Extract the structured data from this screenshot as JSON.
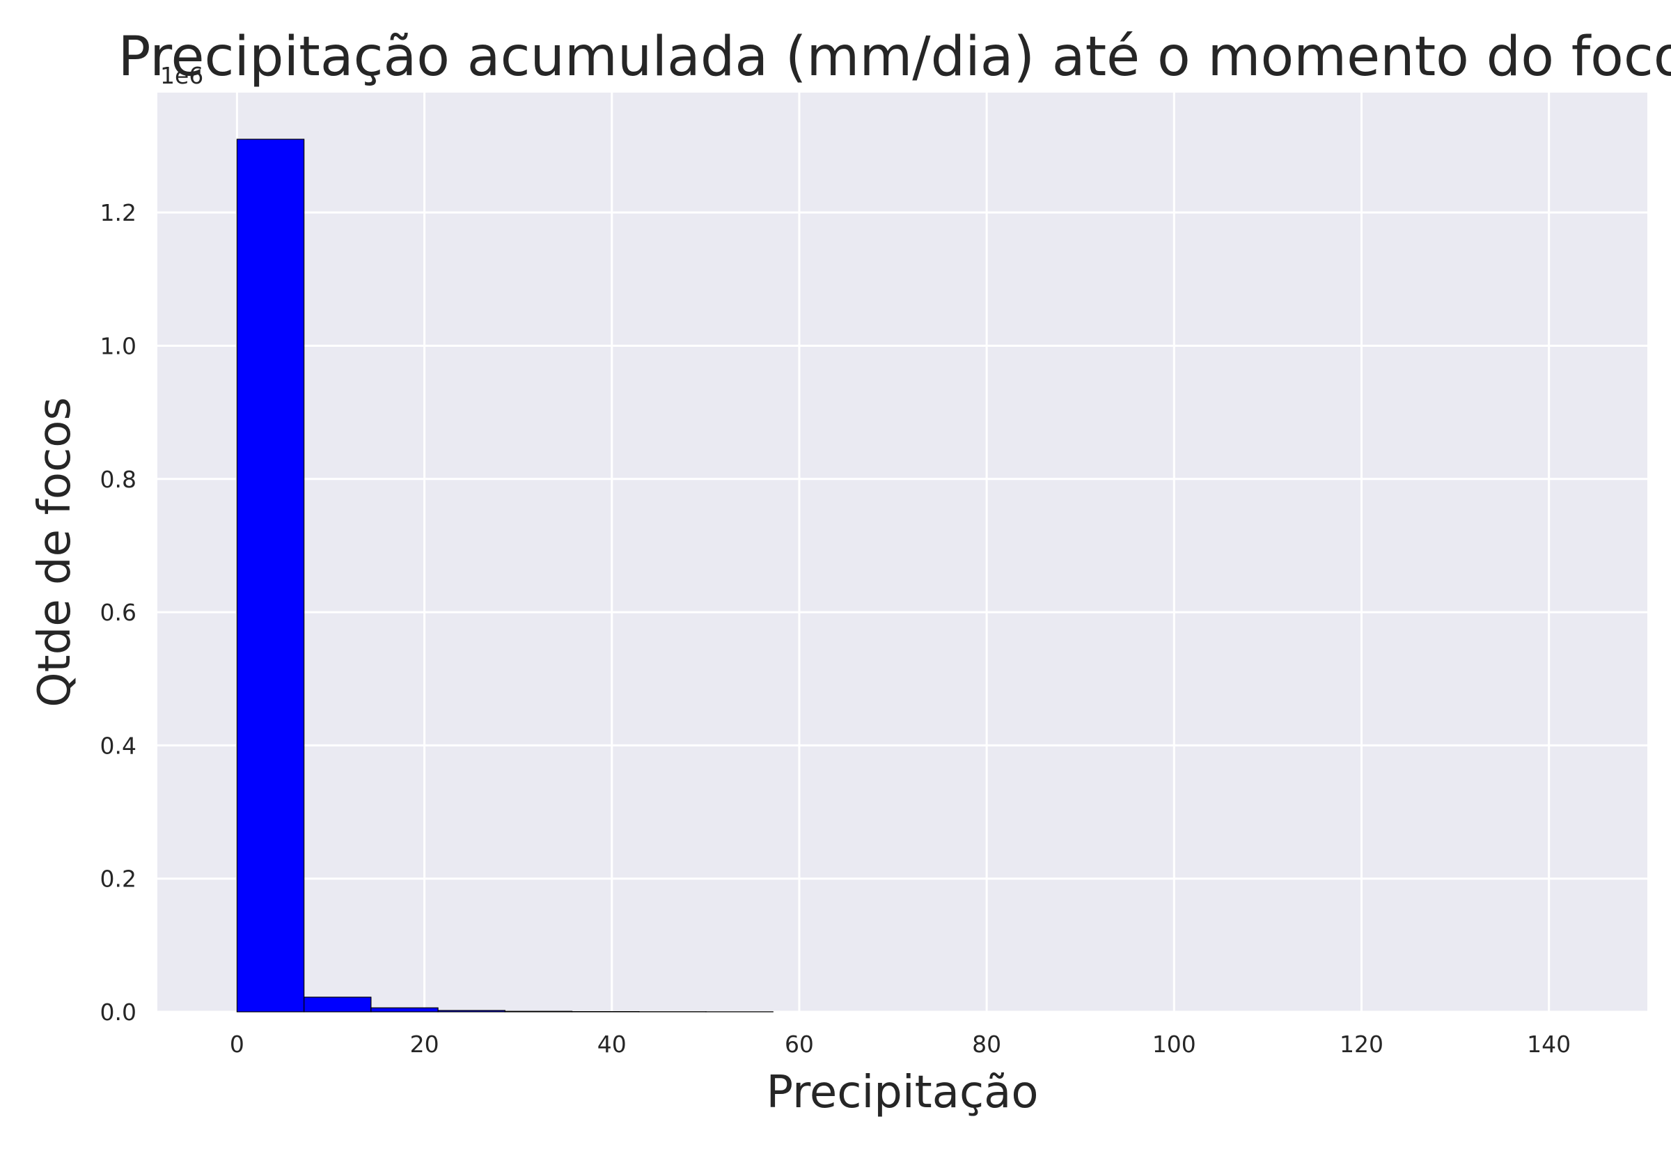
{
  "chart_data": {
    "type": "bar",
    "title": "Precipitação acumulada (mm/dia) até o momento do foco",
    "xlabel": "Precipitação",
    "ylabel": "Qtde de focos",
    "y_offset_label": "1e6",
    "xlim": [
      -8.5,
      150.5
    ],
    "ylim": [
      0,
      1380000
    ],
    "x_ticks": [
      0,
      20,
      40,
      60,
      80,
      100,
      120,
      140
    ],
    "x_tick_labels": [
      "0",
      "20",
      "40",
      "60",
      "80",
      "100",
      "120",
      "140"
    ],
    "y_ticks": [
      0,
      200000,
      400000,
      600000,
      800000,
      1000000,
      1200000
    ],
    "y_tick_labels": [
      "0.0",
      "0.2",
      "0.4",
      "0.6",
      "0.8",
      "1.0",
      "1.2"
    ],
    "grid": true,
    "bar_color": "#0000ff",
    "bar_edge_color": "#000000",
    "background_color": "#eaeaf2",
    "grid_color": "#ffffff",
    "bins": [
      {
        "x0": 0.0,
        "x1": 7.15,
        "value": 1310000
      },
      {
        "x0": 7.15,
        "x1": 14.3,
        "value": 22000
      },
      {
        "x0": 14.3,
        "x1": 21.45,
        "value": 6000
      },
      {
        "x0": 21.45,
        "x1": 28.6,
        "value": 2000
      },
      {
        "x0": 28.6,
        "x1": 35.75,
        "value": 800
      },
      {
        "x0": 35.75,
        "x1": 42.9,
        "value": 400
      },
      {
        "x0": 42.9,
        "x1": 50.05,
        "value": 200
      },
      {
        "x0": 50.05,
        "x1": 57.2,
        "value": 100
      },
      {
        "x0": 57.2,
        "x1": 64.35,
        "value": 0
      },
      {
        "x0": 64.35,
        "x1": 71.5,
        "value": 0
      },
      {
        "x0": 71.5,
        "x1": 78.65,
        "value": 0
      },
      {
        "x0": 78.65,
        "x1": 85.8,
        "value": 0
      },
      {
        "x0": 85.8,
        "x1": 92.95,
        "value": 0
      },
      {
        "x0": 92.95,
        "x1": 100.1,
        "value": 0
      },
      {
        "x0": 100.1,
        "x1": 107.25,
        "value": 0
      },
      {
        "x0": 107.25,
        "x1": 114.4,
        "value": 0
      },
      {
        "x0": 114.4,
        "x1": 121.55,
        "value": 0
      },
      {
        "x0": 121.55,
        "x1": 128.7,
        "value": 0
      },
      {
        "x0": 128.7,
        "x1": 135.85,
        "value": 0
      },
      {
        "x0": 135.85,
        "x1": 143.0,
        "value": 0
      }
    ]
  }
}
